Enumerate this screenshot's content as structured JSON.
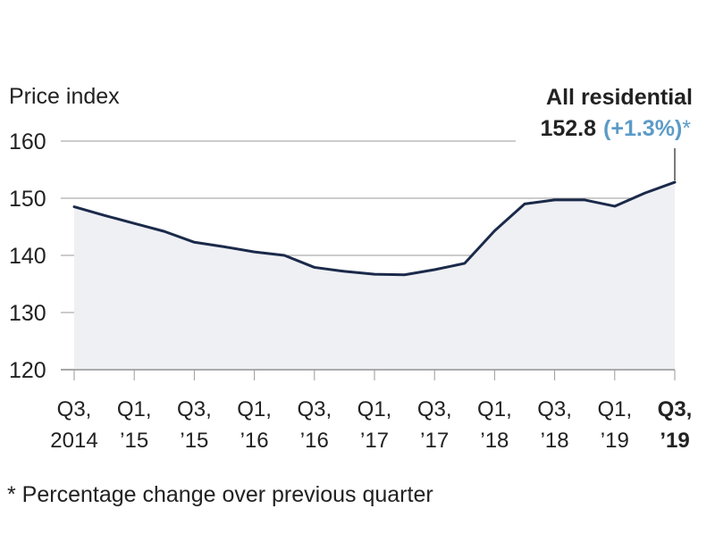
{
  "chart_data": {
    "type": "area",
    "title": "",
    "ylabel": "Price index",
    "xlabel": "",
    "ylim": [
      120,
      160
    ],
    "yticks": [
      120,
      130,
      140,
      150,
      160
    ],
    "grid": true,
    "x": [
      "Q3 2014",
      "Q4 2014",
      "Q1 2015",
      "Q2 2015",
      "Q3 2015",
      "Q4 2015",
      "Q1 2016",
      "Q2 2016",
      "Q3 2016",
      "Q4 2016",
      "Q1 2017",
      "Q2 2017",
      "Q3 2017",
      "Q4 2017",
      "Q1 2018",
      "Q2 2018",
      "Q3 2018",
      "Q4 2018",
      "Q1 2019",
      "Q2 2019",
      "Q3 2019"
    ],
    "series": [
      {
        "name": "All residential",
        "values": [
          148.5,
          147.0,
          145.6,
          144.2,
          142.3,
          141.5,
          140.6,
          140.0,
          137.9,
          137.2,
          136.7,
          136.6,
          137.5,
          138.6,
          144.3,
          149.0,
          149.7,
          149.7,
          148.6,
          150.9,
          152.8
        ]
      }
    ],
    "xtick_labels": [
      {
        "line1": "Q3,",
        "line2": "2014",
        "bold": false
      },
      {
        "line1": "Q1,",
        "line2": "’15",
        "bold": false
      },
      {
        "line1": "Q3,",
        "line2": "’15",
        "bold": false
      },
      {
        "line1": "Q1,",
        "line2": "’16",
        "bold": false
      },
      {
        "line1": "Q3,",
        "line2": "’16",
        "bold": false
      },
      {
        "line1": "Q1,",
        "line2": "’17",
        "bold": false
      },
      {
        "line1": "Q3,",
        "line2": "’17",
        "bold": false
      },
      {
        "line1": "Q1,",
        "line2": "’18",
        "bold": false
      },
      {
        "line1": "Q3,",
        "line2": "’18",
        "bold": false
      },
      {
        "line1": "Q1,",
        "line2": "’19",
        "bold": false
      },
      {
        "line1": "Q3,",
        "line2": "’19",
        "bold": true
      }
    ],
    "annotation": {
      "title": "All residential",
      "value": "152.8",
      "change": "(+1.3%)",
      "marker": "*"
    },
    "footnote": "* Percentage change over previous quarter",
    "colors": {
      "line": "#1b2a4a",
      "area": "#eff0f4",
      "grid": "#9a9a9a",
      "accent": "#5b9bc8"
    }
  }
}
